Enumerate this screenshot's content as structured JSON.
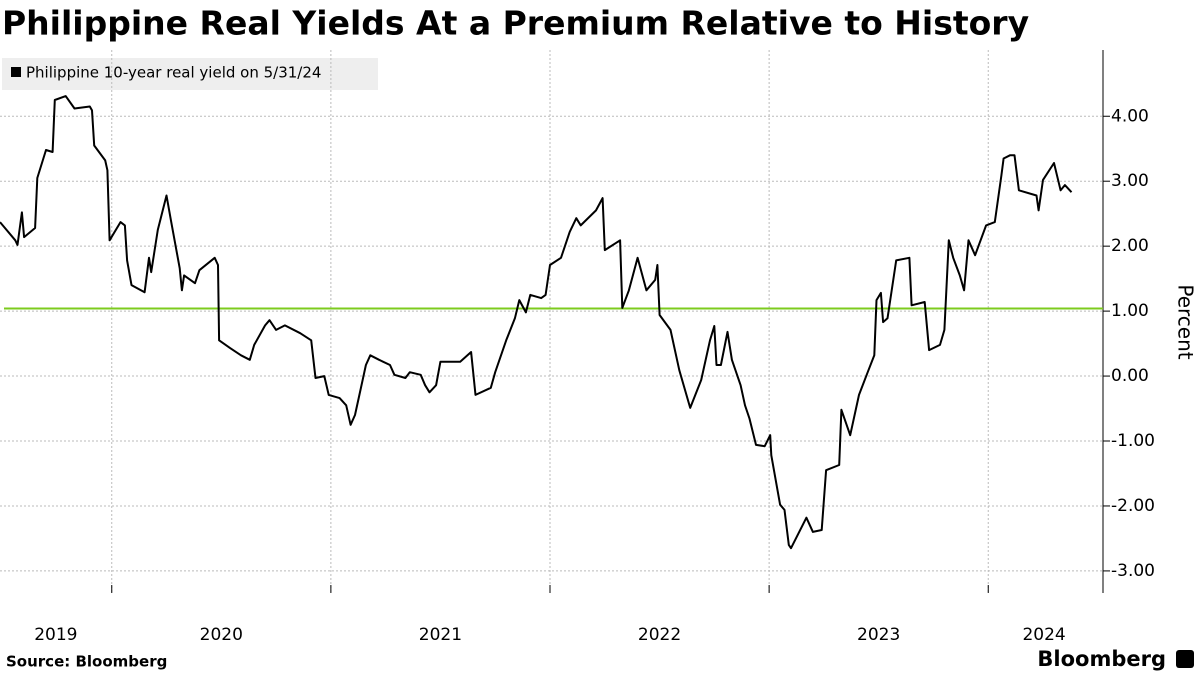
{
  "chart_data": {
    "type": "line",
    "title": "Philippine Real Yields At a Premium Relative to History",
    "source": "Source: Bloomberg",
    "logo": "Bloomberg",
    "ylabel": "Percent",
    "x": [
      2019.49,
      2019.56,
      2019.57,
      2019.59,
      2019.6,
      2019.65,
      2019.66,
      2019.7,
      2019.73,
      2019.74,
      2019.79,
      2019.83,
      2019.9,
      2019.91,
      2019.92,
      2019.97,
      2019.98,
      2019.99,
      2020.04,
      2020.06,
      2020.07,
      2020.09,
      2020.15,
      2020.17,
      2020.18,
      2020.21,
      2020.25,
      2020.27,
      2020.31,
      2020.32,
      2020.33,
      2020.38,
      2020.4,
      2020.47,
      2020.485,
      2020.49,
      2020.54,
      2020.59,
      2020.63,
      2020.65,
      2020.7,
      2020.72,
      2020.75,
      2020.79,
      2020.86,
      2020.91,
      2020.93,
      2020.97,
      2020.99,
      2021.04,
      2021.07,
      2021.09,
      2021.11,
      2021.13,
      2021.16,
      2021.18,
      2021.22,
      2021.27,
      2021.29,
      2021.34,
      2021.36,
      2021.41,
      2021.43,
      2021.45,
      2021.48,
      2021.5,
      2021.59,
      2021.64,
      2021.66,
      2021.73,
      2021.75,
      2021.8,
      2021.84,
      2021.86,
      2021.89,
      2021.91,
      2021.96,
      2021.98,
      2022.0,
      2022.05,
      2022.09,
      2022.12,
      2022.14,
      2022.21,
      2022.24,
      2022.25,
      2022.32,
      2022.33,
      2022.36,
      2022.4,
      2022.44,
      2022.48,
      2022.49,
      2022.5,
      2022.55,
      2022.59,
      2022.64,
      2022.69,
      2022.73,
      2022.75,
      2022.76,
      2022.78,
      2022.81,
      2022.83,
      2022.87,
      2022.89,
      2022.91,
      2022.94,
      2022.98,
      2023.005,
      2023.01,
      2023.05,
      2023.07,
      2023.09,
      2023.1,
      2023.17,
      2023.2,
      2023.24,
      2023.26,
      2023.32,
      2023.33,
      2023.37,
      2023.41,
      2023.45,
      2023.48,
      2023.49,
      2023.51,
      2023.52,
      2023.54,
      2023.58,
      2023.64,
      2023.65,
      2023.71,
      2023.73,
      2023.78,
      2023.8,
      2023.82,
      2023.84,
      2023.87,
      2023.89,
      2023.91,
      2023.94,
      2023.99,
      2024.03,
      2024.06,
      2024.07,
      2024.1,
      2024.12,
      2024.14,
      2024.22,
      2024.23,
      2024.25,
      2024.3,
      2024.33,
      2024.35,
      2024.38
    ],
    "series": [
      {
        "name": "Philippine 10-year real yield on 5/31/24",
        "color": "#000000",
        "values": [
          2.37,
          2.09,
          2.02,
          2.52,
          2.14,
          2.28,
          3.05,
          3.48,
          3.45,
          4.25,
          4.31,
          4.12,
          4.15,
          4.09,
          3.55,
          3.32,
          3.17,
          2.09,
          2.37,
          2.32,
          1.78,
          1.4,
          1.29,
          1.82,
          1.6,
          2.25,
          2.78,
          2.4,
          1.66,
          1.32,
          1.55,
          1.43,
          1.63,
          1.82,
          1.71,
          0.55,
          0.43,
          0.32,
          0.25,
          0.48,
          0.78,
          0.86,
          0.71,
          0.78,
          0.66,
          0.55,
          -0.03,
          0.0,
          -0.29,
          -0.34,
          -0.45,
          -0.75,
          -0.6,
          -0.29,
          0.17,
          0.32,
          0.25,
          0.17,
          0.02,
          -0.03,
          0.06,
          0.02,
          -0.14,
          -0.25,
          -0.14,
          0.22,
          0.22,
          0.37,
          -0.29,
          -0.18,
          0.06,
          0.55,
          0.89,
          1.17,
          0.98,
          1.25,
          1.2,
          1.25,
          1.71,
          1.82,
          2.22,
          2.43,
          2.32,
          2.55,
          2.74,
          1.94,
          2.09,
          1.05,
          1.32,
          1.82,
          1.32,
          1.48,
          1.71,
          0.94,
          0.71,
          0.09,
          -0.49,
          -0.06,
          0.55,
          0.77,
          0.17,
          0.17,
          0.68,
          0.25,
          -0.14,
          -0.45,
          -0.65,
          -1.06,
          -1.08,
          -0.91,
          -1.22,
          -1.98,
          -2.06,
          -2.6,
          -2.65,
          -2.18,
          -2.4,
          -2.37,
          -1.45,
          -1.37,
          -0.52,
          -0.91,
          -0.29,
          0.06,
          0.32,
          1.17,
          1.28,
          0.83,
          0.89,
          1.78,
          1.82,
          1.09,
          1.14,
          0.4,
          0.48,
          0.71,
          2.09,
          1.82,
          1.55,
          1.32,
          2.09,
          1.86,
          2.32,
          2.37,
          3.09,
          3.35,
          3.4,
          3.4,
          2.86,
          2.78,
          2.55,
          3.02,
          3.28,
          2.86,
          2.94,
          2.83
        ]
      }
    ],
    "reference_line": {
      "value": 1.04,
      "color": "#7ccb1e"
    },
    "xlim": [
      2019.49,
      2024.51
    ],
    "xticks": [
      2019,
      2020,
      2021,
      2022,
      2023,
      2024
    ],
    "ylim": [
      -3.34,
      5.02
    ],
    "yticks": [
      {
        "value": -3,
        "label": "-3.00"
      },
      {
        "value": -2,
        "label": "-2.00"
      },
      {
        "value": -1,
        "label": "-1.00"
      },
      {
        "value": 0,
        "label": "0.00"
      },
      {
        "value": 1,
        "label": "1.00"
      },
      {
        "value": 2,
        "label": "2.00"
      },
      {
        "value": 3,
        "label": "3.00"
      },
      {
        "value": 4,
        "label": "4.00"
      }
    ],
    "grid": true
  }
}
